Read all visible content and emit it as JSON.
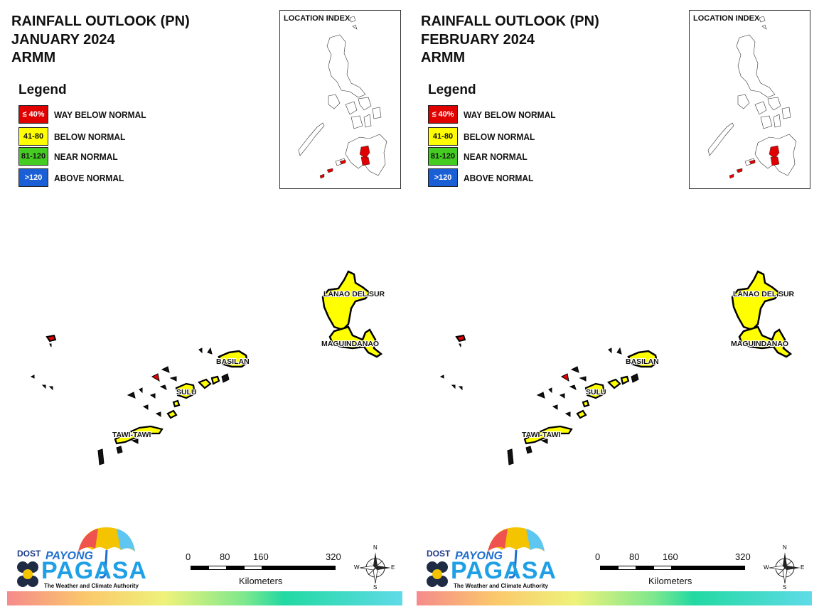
{
  "panels": [
    {
      "title_line1": "RAINFALL OUTLOOK (PN)",
      "title_line2": "JANUARY 2024",
      "title_line3": "ARMM",
      "legend_title": "Legend",
      "legend": [
        {
          "swatch": "≤ 40%",
          "label": "WAY BELOW NORMAL",
          "color": "#e00000",
          "text_color": "#ffffff"
        },
        {
          "swatch": "41-80",
          "label": "BELOW NORMAL",
          "color": "#ffff00",
          "text_color": "#111111"
        },
        {
          "swatch": "81-120",
          "label": "NEAR NORMAL",
          "color": "#44cc22",
          "text_color": "#111111"
        },
        {
          "swatch": ">120",
          "label": "ABOVE NORMAL",
          "color": "#1a5fd6",
          "text_color": "#ffffff"
        }
      ],
      "inset_title": "LOCATION INDEX",
      "provinces": {
        "lanao": "LANAO DEL SUR",
        "maguindanao": "MAGUINDANAO",
        "basilan": "BASILAN",
        "sulu": "SULU",
        "tawi": "TAWI-TAWI"
      },
      "province_class": {
        "lanao": "below-normal",
        "maguindanao": "below-normal",
        "basilan": "below-normal",
        "sulu": "below-normal",
        "tawi": "below-normal",
        "tawi_red_spot": "way-below-normal"
      },
      "scale": {
        "t0": "0",
        "t1": "80",
        "t2": "160",
        "t3": "320",
        "unit": "Kilometers"
      },
      "compass": {
        "n": "N",
        "s": "S",
        "e": "E",
        "w": "W"
      },
      "logo": {
        "dost": "DOST",
        "payong": "PAYONG",
        "pagasa": "PAGASA",
        "tagline": "The Weather and Climate Authority"
      }
    },
    {
      "title_line1": "RAINFALL OUTLOOK (PN)",
      "title_line2": "FEBRUARY 2024",
      "title_line3": "ARMM",
      "legend_title": "Legend",
      "legend": [
        {
          "swatch": "≤ 40%",
          "label": "WAY BELOW NORMAL",
          "color": "#e00000",
          "text_color": "#ffffff"
        },
        {
          "swatch": "41-80",
          "label": "BELOW NORMAL",
          "color": "#ffff00",
          "text_color": "#111111"
        },
        {
          "swatch": "81-120",
          "label": "NEAR NORMAL",
          "color": "#44cc22",
          "text_color": "#111111"
        },
        {
          "swatch": ">120",
          "label": "ABOVE NORMAL",
          "color": "#1a5fd6",
          "text_color": "#ffffff"
        }
      ],
      "inset_title": "LOCATION INDEX",
      "provinces": {
        "lanao": "LANAO DEL SUR",
        "maguindanao": "MAGUINDANAO",
        "basilan": "BASILAN",
        "sulu": "SULU",
        "tawi": "TAWI-TAWI"
      },
      "province_class": {
        "lanao": "below-normal",
        "maguindanao": "below-normal",
        "basilan": "below-normal",
        "sulu": "below-normal",
        "tawi": "below-normal",
        "tawi_red_spot": "way-below-normal"
      },
      "scale": {
        "t0": "0",
        "t1": "80",
        "t2": "160",
        "t3": "320",
        "unit": "Kilometers"
      },
      "compass": {
        "n": "N",
        "s": "S",
        "e": "E",
        "w": "W"
      },
      "logo": {
        "dost": "DOST",
        "payong": "PAYONG",
        "pagasa": "PAGASA",
        "tagline": "The Weather and Climate Authority"
      }
    }
  ],
  "colors": {
    "way_below": "#e00000",
    "below": "#ffff00",
    "near": "#44cc22",
    "above": "#1a5fd6",
    "outline": "#000000"
  },
  "icons": {
    "compass": "north-arrow-compass-icon",
    "umbrella": "umbrella-logo-icon"
  }
}
